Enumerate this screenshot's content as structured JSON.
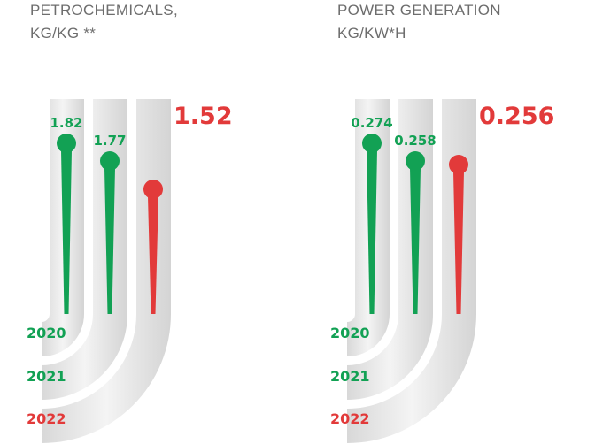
{
  "colors": {
    "green": "#12a154",
    "red": "#e23a3a",
    "track": "#e4e4e4",
    "track_dark": "#c9c9c9"
  },
  "chart_data": [
    {
      "type": "bar",
      "title_line1": "PETROCHEMICALS,",
      "title_line2": "KG/KG **",
      "categories": [
        "2020",
        "2021",
        "2022"
      ],
      "values": [
        1.82,
        1.77,
        1.52
      ],
      "labels": [
        "1.82",
        "1.77",
        "1.52"
      ],
      "ylim": [
        1.2,
        1.82
      ],
      "series_colors": [
        "green",
        "green",
        "red"
      ]
    },
    {
      "type": "bar",
      "title_line1": "POWER GENERATION",
      "title_line2": "KG/KW*H",
      "categories": [
        "2020",
        "2021",
        "2022"
      ],
      "values": [
        0.274,
        0.258,
        0.256
      ],
      "labels": [
        "0.274",
        "0.258",
        "0.256"
      ],
      "ylim": [
        0.23,
        0.274
      ],
      "series_colors": [
        "green",
        "green",
        "red"
      ]
    }
  ]
}
